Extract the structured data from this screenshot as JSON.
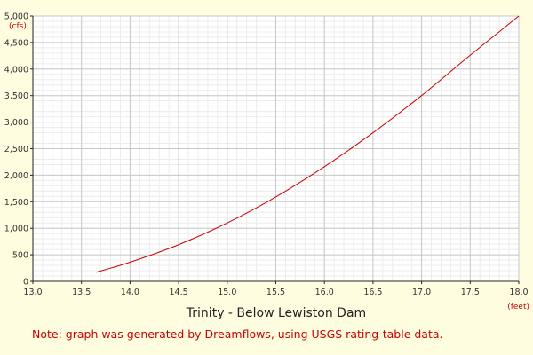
{
  "colors": {
    "background": "#fffde0",
    "plot_background": "#ffffff",
    "grid_major": "#c8c8c8",
    "grid_minor": "#ececec",
    "curve": "#cc0000",
    "note": "#cc0000",
    "unit": "#cc0000"
  },
  "chart_data": {
    "type": "line",
    "title": "Trinity - Below Lewiston Dam",
    "xlabel": "(feet)",
    "ylabel": "(cfs)",
    "xlim": [
      13.0,
      18.0
    ],
    "ylim": [
      0,
      5000
    ],
    "x_ticks": [
      "13.0",
      "13.5",
      "14.0",
      "14.5",
      "15.0",
      "15.5",
      "16.0",
      "16.5",
      "17.0",
      "17.5",
      "18.0"
    ],
    "y_ticks": [
      "0",
      "500",
      "1,000",
      "1,500",
      "2,000",
      "2,500",
      "3,000",
      "3,500",
      "4,000",
      "4,500",
      "5,000"
    ],
    "grid": true,
    "series": [
      {
        "color": "#cc0000",
        "x": [
          13.65,
          14.0,
          14.5,
          15.0,
          15.5,
          16.0,
          16.5,
          17.0,
          17.5,
          18.0
        ],
        "y": [
          170,
          360,
          690,
          1100,
          1590,
          2160,
          2800,
          3500,
          4260,
          5000
        ]
      }
    ]
  },
  "note": "Note: graph was generated by Dreamflows, using USGS rating-table data."
}
